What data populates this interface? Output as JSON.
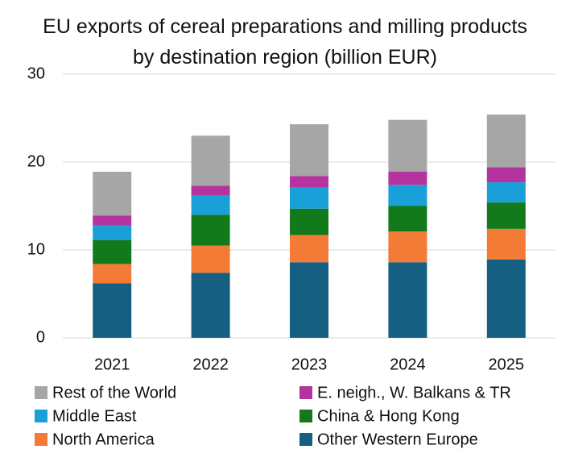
{
  "chart_data": {
    "type": "stacked_bar",
    "title": "EU exports of cereal preparations and milling products by destination region (billion EUR)",
    "categories": [
      "2021",
      "2022",
      "2023",
      "2024",
      "2025"
    ],
    "series": [
      {
        "name": "Other Western Europe",
        "color": "#156082",
        "values": [
          6.2,
          7.4,
          8.6,
          8.6,
          8.9
        ]
      },
      {
        "name": "North America",
        "color": "#f47b36",
        "values": [
          2.2,
          3.1,
          3.1,
          3.5,
          3.5
        ]
      },
      {
        "name": "China & Hong Kong",
        "color": "#127a1a",
        "values": [
          2.7,
          3.5,
          3.0,
          2.9,
          3.0
        ]
      },
      {
        "name": "Middle East",
        "color": "#1aa0d8",
        "values": [
          1.7,
          2.2,
          2.4,
          2.4,
          2.3
        ]
      },
      {
        "name": "E. neigh., W. Balkans & TR",
        "color": "#b5339e",
        "values": [
          1.1,
          1.1,
          1.3,
          1.5,
          1.7
        ]
      },
      {
        "name": "Rest of the World",
        "color": "#a6a6a6",
        "values": [
          5.0,
          5.7,
          5.9,
          5.9,
          6.0
        ]
      }
    ],
    "ylim": [
      0,
      30
    ],
    "yticks": [
      0,
      10,
      20,
      30
    ],
    "grid": true
  }
}
